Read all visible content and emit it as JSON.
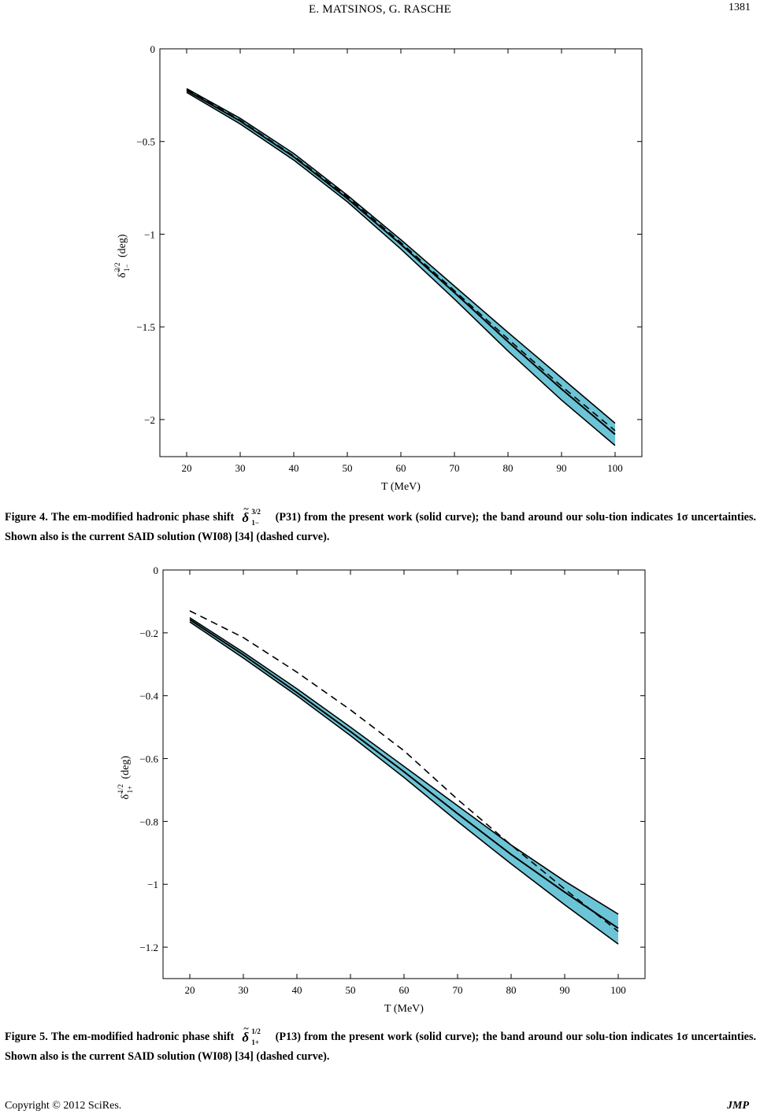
{
  "header": {
    "authors": "E. MATSINOS, G. RASCHE",
    "page_number": "1381"
  },
  "figures": [
    {
      "caption": {
        "label": "Figure 4.",
        "text_before": " The em-modified hadronic phase shift",
        "symbol_sup": "3/2",
        "symbol_sub": "1−",
        "text_after": "(P31) from the present work (solid curve); the band around our solu-tion indicates 1σ uncertainties. Shown also is the current SAID solution (WI08) [34] (dashed curve)."
      }
    },
    {
      "caption": {
        "label": "Figure 5.",
        "text_before": " The em-modified hadronic phase shift",
        "symbol_sup": "1/2",
        "symbol_sub": "1+",
        "text_after": "(P13) from the present work (solid curve); the band around our solu-tion indicates 1σ uncertainties. Shown also is the current SAID solution (WI08) [34] (dashed curve)."
      }
    }
  ],
  "chart_data": [
    {
      "type": "line",
      "title": "",
      "xlabel": "T (MeV)",
      "ylabel": "δ̃ 1−3/2 (deg)",
      "ylabel_delta": "δ̃",
      "ylabel_sup": "3/2",
      "ylabel_sub": "1−",
      "ylabel_unit": "(deg)",
      "xlim": [
        15,
        105
      ],
      "ylim": [
        -2.2,
        0
      ],
      "xticks": [
        20,
        30,
        40,
        50,
        60,
        70,
        80,
        90,
        100
      ],
      "yticks": [
        0,
        -0.5,
        -1,
        -1.5,
        -2
      ],
      "ytick_labels": [
        "0",
        "−0.5",
        "−1",
        "−1.5",
        "−2"
      ],
      "grid": false,
      "colors": {
        "band": "#6cc5d6",
        "line": "#000000"
      },
      "x": [
        20,
        30,
        40,
        50,
        60,
        70,
        80,
        90,
        100
      ],
      "series": [
        {
          "style": "band-upper",
          "values": [
            -0.215,
            -0.375,
            -0.565,
            -0.79,
            -1.03,
            -1.28,
            -1.53,
            -1.775,
            -2.02
          ]
        },
        {
          "style": "band-lower",
          "values": [
            -0.235,
            -0.405,
            -0.6,
            -0.825,
            -1.08,
            -1.35,
            -1.63,
            -1.895,
            -2.14
          ]
        },
        {
          "style": "solid",
          "values": [
            -0.225,
            -0.39,
            -0.583,
            -0.808,
            -1.055,
            -1.315,
            -1.58,
            -1.835,
            -2.08
          ]
        },
        {
          "style": "dashed",
          "values": [
            -0.22,
            -0.385,
            -0.578,
            -0.798,
            -1.045,
            -1.305,
            -1.565,
            -1.82,
            -2.06
          ]
        }
      ]
    },
    {
      "type": "line",
      "title": "",
      "xlabel": "T (MeV)",
      "ylabel": "δ̃ 1+1/2 (deg)",
      "ylabel_delta": "δ̃",
      "ylabel_sup": "1/2",
      "ylabel_sub": "1+",
      "ylabel_unit": "(deg)",
      "xlim": [
        15,
        105
      ],
      "ylim": [
        -1.3,
        0
      ],
      "xticks": [
        20,
        30,
        40,
        50,
        60,
        70,
        80,
        90,
        100
      ],
      "yticks": [
        0,
        -0.2,
        -0.4,
        -0.6,
        -0.8,
        -1,
        -1.2
      ],
      "ytick_labels": [
        "0",
        "−0.2",
        "−0.4",
        "−0.6",
        "−0.8",
        "−1",
        "−1.2"
      ],
      "grid": false,
      "colors": {
        "band": "#6cc5d6",
        "line": "#000000"
      },
      "x": [
        20,
        30,
        40,
        50,
        60,
        70,
        80,
        90,
        100
      ],
      "series": [
        {
          "style": "band-upper",
          "values": [
            -0.152,
            -0.262,
            -0.378,
            -0.5,
            -0.625,
            -0.75,
            -0.875,
            -0.99,
            -1.095
          ]
        },
        {
          "style": "band-lower",
          "values": [
            -0.165,
            -0.28,
            -0.4,
            -0.527,
            -0.66,
            -0.8,
            -0.935,
            -1.065,
            -1.19
          ]
        },
        {
          "style": "solid",
          "values": [
            -0.158,
            -0.27,
            -0.39,
            -0.514,
            -0.642,
            -0.775,
            -0.905,
            -1.025,
            -1.14
          ]
        },
        {
          "style": "dashed",
          "values": [
            -0.13,
            -0.215,
            -0.325,
            -0.445,
            -0.575,
            -0.73,
            -0.875,
            -1.015,
            -1.15
          ]
        }
      ]
    }
  ],
  "footer": {
    "copyright": "Copyright © 2012 SciRes.",
    "journal": "JMP"
  }
}
